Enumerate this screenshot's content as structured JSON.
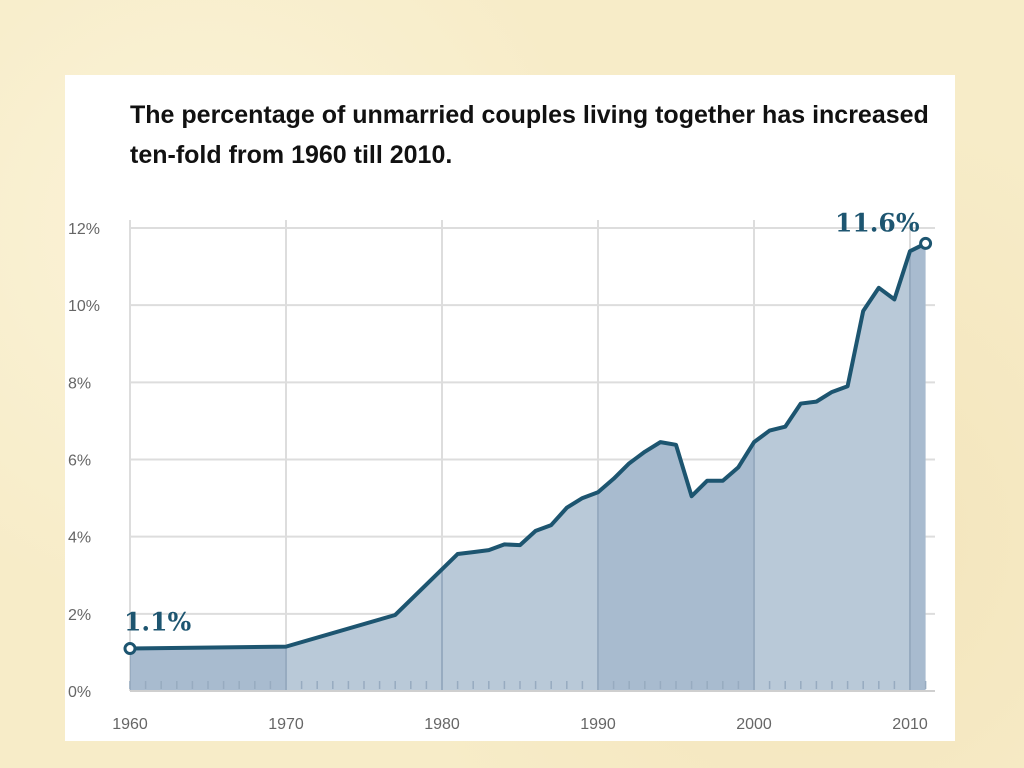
{
  "title": "The percentage of unmarried couples living together has increased ten-fold from 1960 till 2010.",
  "chart_data": {
    "type": "area",
    "title": "The percentage of unmarried couples living together has increased ten-fold from 1960 till 2010.",
    "xlabel": "",
    "ylabel": "",
    "xlim": [
      1960,
      2011
    ],
    "ylim": [
      0,
      12
    ],
    "x_ticks": [
      1960,
      1970,
      1980,
      1990,
      2000,
      2010
    ],
    "x_tick_labels": [
      "1960",
      "1970",
      "1980",
      "1990",
      "2000",
      "2010"
    ],
    "y_ticks": [
      0,
      2,
      4,
      6,
      8,
      10,
      12
    ],
    "y_tick_labels": [
      "0%",
      "2%",
      "4%",
      "6%",
      "8%",
      "10%",
      "12%"
    ],
    "grid": true,
    "colors": {
      "line": "#1d5570",
      "fill": "#b9c9d8",
      "fill_dark": "#a8bbcf",
      "grid": "#dddddd"
    },
    "x": [
      1960,
      1970,
      1977,
      1981,
      1982,
      1983,
      1984,
      1985,
      1986,
      1987,
      1988,
      1989,
      1990,
      1991,
      1992,
      1993,
      1994,
      1995,
      1996,
      1997,
      1998,
      1999,
      2000,
      2001,
      2002,
      2003,
      2004,
      2005,
      2006,
      2007,
      2008,
      2009,
      2010,
      2011
    ],
    "values": [
      1.1,
      1.15,
      1.97,
      3.55,
      3.6,
      3.65,
      3.8,
      3.78,
      4.15,
      4.3,
      4.75,
      5.0,
      5.15,
      5.5,
      5.9,
      6.2,
      6.45,
      6.38,
      5.05,
      5.45,
      5.45,
      5.8,
      6.45,
      6.75,
      6.85,
      7.45,
      7.5,
      7.75,
      7.9,
      9.85,
      10.45,
      10.15,
      11.4,
      11.6
    ],
    "annotations": [
      {
        "x": 1960,
        "y": 1.1,
        "text": "1.1%"
      },
      {
        "x": 2011,
        "y": 11.6,
        "text": "11.6%"
      }
    ]
  }
}
